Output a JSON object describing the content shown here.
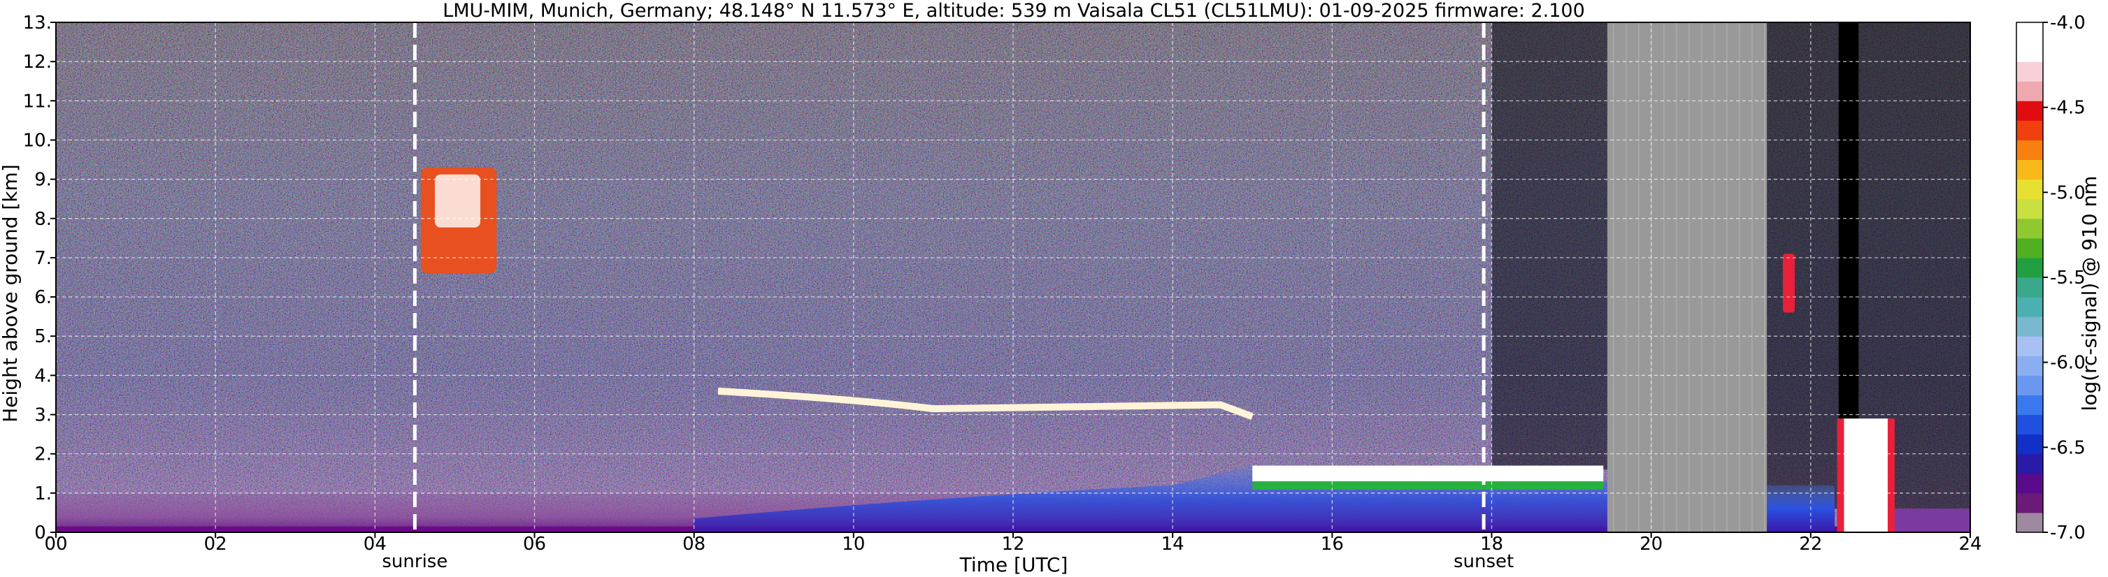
{
  "chart_data": {
    "type": "heatmap",
    "title": "LMU-MIM, Munich, Germany; 48.148° N 11.573° E, altitude: 539 m    Vaisala CL51 (CL51LMU): 01-09-2025    firmware: 2.100",
    "xlabel": "Time [UTC]",
    "ylabel": "Height above ground [km]",
    "xlim": [
      0,
      24
    ],
    "ylim": [
      0,
      13
    ],
    "x_ticks": [
      "00",
      "02",
      "04",
      "06",
      "08",
      "10",
      "12",
      "14",
      "16",
      "18",
      "20",
      "22",
      "24"
    ],
    "y_ticks": [
      "0.",
      "1.",
      "2.",
      "3.",
      "4.",
      "5.",
      "6.",
      "7.",
      "8.",
      "9.",
      "10.",
      "11.",
      "12.",
      "13."
    ],
    "grid": true,
    "colorbar": {
      "label": "log(rc-signal) @ 910 nm",
      "range": [
        -7.0,
        -4.0
      ],
      "ticks": [
        "-4.0",
        "-4.5",
        "-5.0",
        "-5.5",
        "-6.0",
        "-6.5",
        "-7.0"
      ],
      "colors": [
        "#9e8aa0",
        "#6c1a78",
        "#5a0a8c",
        "#2a1aa8",
        "#1030c8",
        "#2050e0",
        "#3a78ee",
        "#6a98f0",
        "#8aaef2",
        "#a8c0f4",
        "#7ab8d0",
        "#4ab0b0",
        "#3aa88a",
        "#20a040",
        "#50b020",
        "#90c830",
        "#c8e040",
        "#e8e030",
        "#f8b818",
        "#f88010",
        "#f04010",
        "#e00c10",
        "#f0a8b0",
        "#f8d0d8",
        "#ffffff",
        "#ffffff"
      ]
    },
    "vertical_markers": [
      {
        "x": 4.5,
        "label": "sunrise"
      },
      {
        "x": 17.9,
        "label": "sunset"
      }
    ],
    "missing_data_intervals": [
      [
        19.45,
        21.45
      ]
    ],
    "cloud_layers_km": [
      {
        "x_start": 4.4,
        "x_end": 6.3,
        "base": 6.6,
        "top": 9.3
      },
      {
        "x_start": 8.3,
        "x_end": 15.0,
        "base": 2.8,
        "top": 3.7
      },
      {
        "x_start": 15.0,
        "x_end": 19.4,
        "base": 1.3,
        "top": 1.7
      },
      {
        "x_start": 21.65,
        "x_end": 21.8,
        "base": 5.6,
        "top": 7.1
      },
      {
        "x_start": 22.4,
        "x_end": 23.0,
        "base": 0.0,
        "top": 3.0
      }
    ],
    "boundary_layer_top_km": 1.0
  }
}
